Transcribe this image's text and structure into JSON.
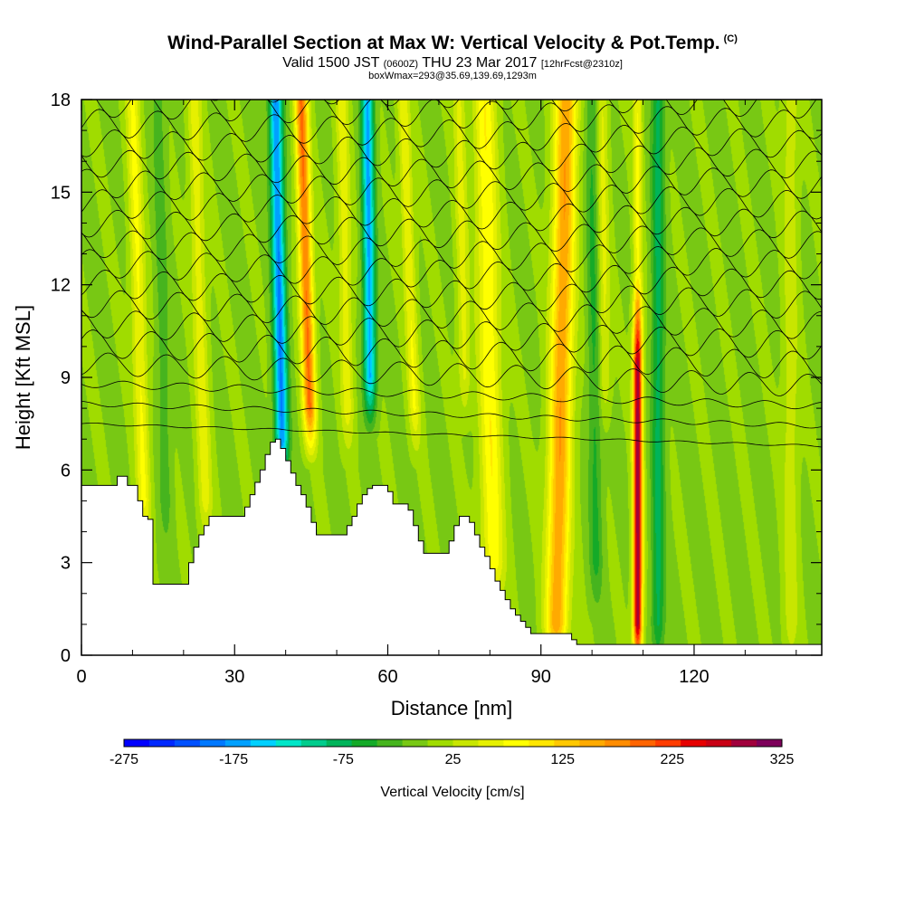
{
  "chart_data": {
    "type": "heatmap",
    "title": "Wind-Parallel Section at Max W: Vertical Velocity & Pot.Temp.",
    "copyright": "(C)",
    "subtitle_main_a": "Valid 1500 JST",
    "subtitle_small_a": "(0600Z)",
    "subtitle_main_b": "THU 23 Mar 2017",
    "subtitle_small_b": "[12hrFcst@2310z]",
    "subtitle2": "boxWmax=293@35.69,139.69,1293m",
    "xlabel": "Distance [nm]",
    "ylabel": "Height [Kft MSL]",
    "xlim": [
      0,
      145
    ],
    "ylim": [
      0,
      18
    ],
    "x_ticks": [
      0,
      30,
      60,
      90,
      120
    ],
    "y_ticks": [
      0,
      3,
      6,
      9,
      12,
      15,
      18
    ],
    "colorbar": {
      "title": "Vertical Velocity [cm/s]",
      "tick_labels": [
        "-275",
        "-175",
        "-75",
        "25",
        "125",
        "225",
        "325"
      ],
      "bounds": [
        -275,
        325
      ],
      "colors": [
        "#0000ff",
        "#0028ff",
        "#0050ff",
        "#0078ff",
        "#00a0ff",
        "#00d0ff",
        "#00e6c8",
        "#00cc8c",
        "#00b45a",
        "#14aa28",
        "#46b41e",
        "#78c814",
        "#a0dc00",
        "#c8e600",
        "#e6f000",
        "#ffff00",
        "#ffe600",
        "#ffc800",
        "#ffaa00",
        "#ff8c00",
        "#ff6400",
        "#ff3c00",
        "#e60000",
        "#c80014",
        "#a0003c",
        "#7d005a"
      ]
    },
    "terrain_heights_kft": [
      5.5,
      5.5,
      5.5,
      5.5,
      5.5,
      5.5,
      5.5,
      5.8,
      5.8,
      5.5,
      5.5,
      5.0,
      4.5,
      4.4,
      2.3,
      2.3,
      2.3,
      2.3,
      2.3,
      2.3,
      2.3,
      3.0,
      3.5,
      3.9,
      4.2,
      4.5,
      4.5,
      4.5,
      4.5,
      4.5,
      4.5,
      4.5,
      4.8,
      5.2,
      5.6,
      6.0,
      6.5,
      6.9,
      7.0,
      6.7,
      6.3,
      5.9,
      5.5,
      5.2,
      4.8,
      4.3,
      3.9,
      3.9,
      3.9,
      3.9,
      3.9,
      3.9,
      4.2,
      4.5,
      4.9,
      5.2,
      5.4,
      5.5,
      5.5,
      5.5,
      5.3,
      4.9,
      4.9,
      4.9,
      4.7,
      4.2,
      3.7,
      3.3,
      3.3,
      3.3,
      3.3,
      3.3,
      3.7,
      4.2,
      4.5,
      4.5,
      4.3,
      3.9,
      3.5,
      3.2,
      2.8,
      2.4,
      2.1,
      1.8,
      1.5,
      1.3,
      1.1,
      0.9,
      0.7,
      0.7,
      0.7,
      0.7,
      0.7,
      0.7,
      0.7,
      0.7,
      0.5,
      0.35,
      0.35,
      0.35,
      0.35,
      0.35,
      0.35,
      0.35,
      0.35,
      0.35,
      0.35,
      0.35,
      0.35,
      0.35,
      0.35,
      0.35,
      0.35,
      0.35,
      0.35,
      0.35,
      0.35,
      0.35,
      0.35,
      0.35,
      0.35,
      0.35,
      0.35,
      0.35,
      0.35,
      0.35,
      0.35,
      0.35,
      0.35,
      0.35,
      0.35,
      0.35,
      0.35,
      0.35,
      0.35,
      0.35,
      0.35,
      0.35,
      0.35,
      0.35,
      0.35,
      0.35,
      0.35,
      0.35,
      0.35,
      0.35,
      0.35,
      0.35
    ],
    "updraft_bands": [
      {
        "x_bottom": 13,
        "x_top": 10,
        "w": 75,
        "z_from": 5,
        "width": 1.4
      },
      {
        "x_bottom": 25,
        "x_top": 22,
        "w": 60,
        "z_from": 5,
        "width": 1.4
      },
      {
        "x_bottom": 46,
        "x_top": 43,
        "w": 190,
        "z_from": 8,
        "width": 1.3
      },
      {
        "x_bottom": 53,
        "x_top": 51,
        "w": 60,
        "z_from": 8,
        "width": 1.3
      },
      {
        "x_bottom": 67,
        "x_top": 63,
        "w": 70,
        "z_from": 8,
        "width": 1.2
      },
      {
        "x_bottom": 76,
        "x_top": 74,
        "w": 55,
        "z_from": 9,
        "width": 1.2
      },
      {
        "x_bottom": 81,
        "x_top": 79,
        "w": 90,
        "z_from": 3,
        "width": 2.2
      },
      {
        "x_bottom": 93,
        "x_top": 95,
        "w": 160,
        "z_from": 1,
        "width": 2.2
      },
      {
        "x_bottom": 109,
        "x_top": 109,
        "w": 293,
        "z_from": 1,
        "width": 0.9
      },
      {
        "x_bottom": 103,
        "x_top": 102,
        "w": 55,
        "z_from": 9,
        "width": 1.2
      },
      {
        "x_bottom": 139,
        "x_top": 139,
        "w": 40,
        "z_from": 1,
        "width": 1.5
      }
    ],
    "downdraft_bands": [
      {
        "x_bottom": 40,
        "x_top": 38,
        "w": -185,
        "z_from": 7,
        "width": 1.3
      },
      {
        "x_bottom": 57,
        "x_top": 56,
        "w": -165,
        "z_from": 9,
        "width": 1.2
      },
      {
        "x_bottom": 113,
        "x_top": 113,
        "w": -75,
        "z_from": 1,
        "width": 1.3
      },
      {
        "x_bottom": 101,
        "x_top": 100,
        "w": -50,
        "z_from": 3,
        "width": 1.3
      },
      {
        "x_bottom": 17,
        "x_top": 15,
        "w": -35,
        "z_from": 5,
        "width": 1.2
      }
    ]
  }
}
